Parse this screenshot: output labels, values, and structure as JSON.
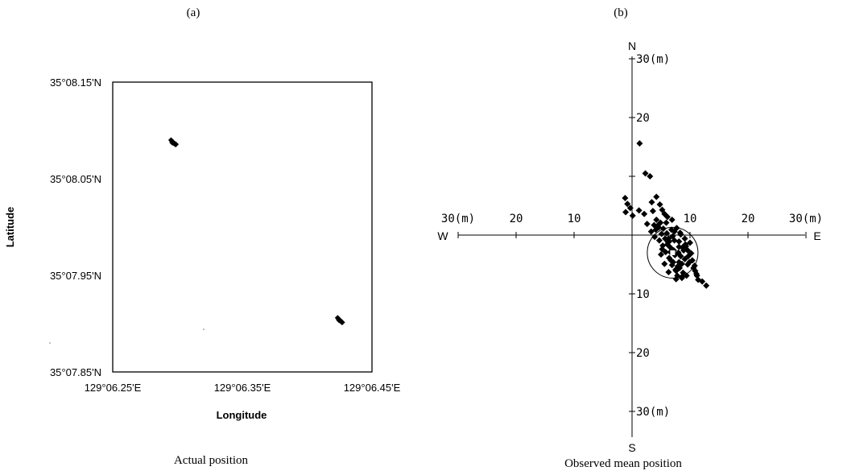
{
  "panels": {
    "a": {
      "label": "(a)",
      "caption": "Actual position"
    },
    "b": {
      "label": "(b)",
      "caption": "Observed mean position"
    }
  },
  "chart_data": [
    {
      "type": "scatter",
      "title": "",
      "xlabel": "Longitude",
      "ylabel": "Latitude",
      "xlim": [
        6.25,
        6.45
      ],
      "ylim": [
        7.85,
        8.15
      ],
      "xticks": [
        6.25,
        6.35,
        6.45
      ],
      "xtick_labels": [
        "129°06.25'E",
        "129°06.35'E",
        "129°06.45'E"
      ],
      "yticks": [
        8.15,
        8.05,
        7.95,
        7.85
      ],
      "ytick_labels": [
        "35°08.15'N",
        "35°08.05'N",
        "35°07.95'N",
        "35°07.85'N"
      ],
      "grid": false,
      "series": [
        {
          "x": [
            6.295,
            6.2955,
            6.296,
            6.2965,
            6.297,
            6.2975,
            6.298,
            6.2985,
            6.2958,
            6.2968,
            6.2978,
            6.2988
          ],
          "y": [
            8.09,
            8.0892,
            8.0885,
            8.0878,
            8.0872,
            8.0866,
            8.086,
            8.0854,
            8.0874,
            8.0868,
            8.0862,
            8.0856
          ]
        },
        {
          "x": [
            6.4235,
            6.424,
            6.4245,
            6.425,
            6.4255,
            6.426,
            6.4265,
            6.427,
            6.4245,
            6.4255,
            6.4265,
            6.427
          ],
          "y": [
            7.906,
            7.9052,
            7.9045,
            7.9038,
            7.9031,
            7.9024,
            7.9018,
            7.9012,
            7.9035,
            7.9028,
            7.9021,
            7.9014
          ]
        }
      ]
    },
    {
      "type": "scatter",
      "title": "",
      "xlim": [
        -30,
        30
      ],
      "ylim": [
        -30,
        30
      ],
      "x_tick_labels": [
        {
          "value": -30,
          "label": "30(m)"
        },
        {
          "value": -20,
          "label": "20"
        },
        {
          "value": -10,
          "label": "10"
        },
        {
          "value": 10,
          "label": "10"
        },
        {
          "value": 20,
          "label": "20"
        },
        {
          "value": 30,
          "label": "30(m)"
        }
      ],
      "y_tick_labels": [
        {
          "value": 30,
          "label": "30(m)"
        },
        {
          "value": 20,
          "label": "20"
        },
        {
          "value": -10,
          "label": "10"
        },
        {
          "value": -20,
          "label": "20"
        },
        {
          "value": -30,
          "label": "30(m)"
        }
      ],
      "compass": {
        "north": "N",
        "south": "S",
        "west": "W",
        "east": "E"
      },
      "grid": false,
      "mean_position": {
        "x": 7,
        "y": -3
      },
      "circle_radius": 5,
      "series": [
        {
          "x": [
            1.3,
            2.3,
            3.1,
            -1.2,
            -0.8,
            -0.3,
            -1.1,
            0.1,
            1.2,
            4.2,
            3.4,
            4.8,
            5.2,
            5.6,
            6.1,
            6.9,
            5.9,
            4.6,
            3.3,
            2.6,
            2.1,
            3.9,
            4.1,
            5.1,
            6.3,
            7.3,
            8.1,
            9.2,
            8.7,
            9.6,
            10.2,
            6.1,
            5.2,
            6.6,
            7.4,
            8.4,
            9.1,
            7.1,
            6.4,
            5.6,
            6.9,
            8.2,
            7.6,
            8.8,
            9.4,
            7.9,
            6.7,
            7.2,
            8.1,
            9.9,
            10.6,
            11.1,
            8.6,
            7.6,
            6.4,
            5.7,
            7.3,
            8.4,
            9.1,
            10.0,
            7.8,
            8.6,
            6.6,
            8.1,
            10.9,
            11.4,
            4.4,
            4.9,
            5.4,
            6.0,
            6.8,
            7.7,
            8.3,
            5.3,
            4.2,
            3.8,
            9.7,
            10.4,
            9.3,
            8.9,
            8.0,
            7.0,
            6.2,
            5.8,
            9.6,
            10.8,
            11.2,
            4.7,
            6.3,
            7.5,
            8.6,
            5.0,
            3.6,
            12.1,
            12.8
          ],
          "y": [
            15.6,
            10.5,
            10.0,
            6.3,
            5.3,
            4.6,
            3.9,
            3.3,
            4.2,
            6.5,
            5.6,
            5.2,
            4.3,
            3.6,
            3.1,
            2.6,
            2.1,
            1.3,
            0.6,
            1.9,
            3.6,
            -0.3,
            0.9,
            0.2,
            -0.6,
            -0.9,
            -1.1,
            -1.6,
            -2.1,
            -2.6,
            -3.1,
            -1.6,
            -2.4,
            -2.9,
            -3.4,
            -3.6,
            -4.1,
            -4.6,
            -3.9,
            -4.9,
            -5.1,
            -5.6,
            -6.1,
            -6.4,
            -6.9,
            -5.3,
            -4.3,
            -2.6,
            -2.0,
            -4.6,
            -5.6,
            -6.6,
            -7.1,
            -7.5,
            -1.1,
            -0.6,
            0.6,
            0.1,
            -0.6,
            -1.3,
            -6.9,
            -7.3,
            -2.1,
            -4.6,
            -6.1,
            -7.6,
            1.6,
            2.1,
            1.1,
            0.3,
            0.9,
            1.2,
            0.4,
            -1.8,
            2.6,
            1.7,
            -3.6,
            -4.3,
            -1.9,
            -2.6,
            -3.0,
            -0.2,
            -1.2,
            -2.9,
            -5.0,
            -5.2,
            -6.9,
            -0.9,
            -6.3,
            -5.9,
            -4.9,
            -3.3,
            4.1,
            -7.9,
            -8.6
          ]
        }
      ]
    }
  ]
}
